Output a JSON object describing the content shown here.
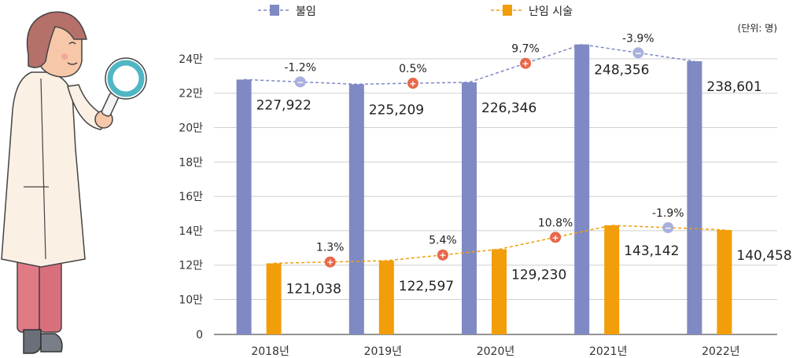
{
  "chart_data": {
    "type": "bar",
    "unit_label": "(단위: 명)",
    "categories": [
      "2018년",
      "2019년",
      "2020년",
      "2021년",
      "2022년"
    ],
    "y_ticks": [
      "0",
      "10만",
      "12만",
      "14만",
      "16만",
      "18만",
      "20만",
      "22만",
      "24만"
    ],
    "series": [
      {
        "name": "불임",
        "color": "#7f89c4",
        "line_color": "#7f89c4",
        "values": [
          227922,
          225209,
          226346,
          248356,
          238601
        ],
        "value_labels": [
          "227,922",
          "225,209",
          "226,346",
          "248,356",
          "238,601"
        ],
        "changes": [
          "-1.2%",
          "0.5%",
          "9.7%",
          "-3.9%"
        ]
      },
      {
        "name": "난임 시술",
        "color": "#f29d0a",
        "line_color": "#f29d0a",
        "values": [
          121038,
          122597,
          129230,
          143142,
          140458
        ],
        "value_labels": [
          "121,038",
          "122,597",
          "129,230",
          "143,142",
          "140,458"
        ],
        "changes": [
          "1.3%",
          "5.4%",
          "10.8%",
          "-1.9%"
        ]
      }
    ],
    "marker_colors": {
      "increase": "#e8674a",
      "decrease": "#a9b0dd"
    },
    "grid": true,
    "legend_position": "top"
  }
}
